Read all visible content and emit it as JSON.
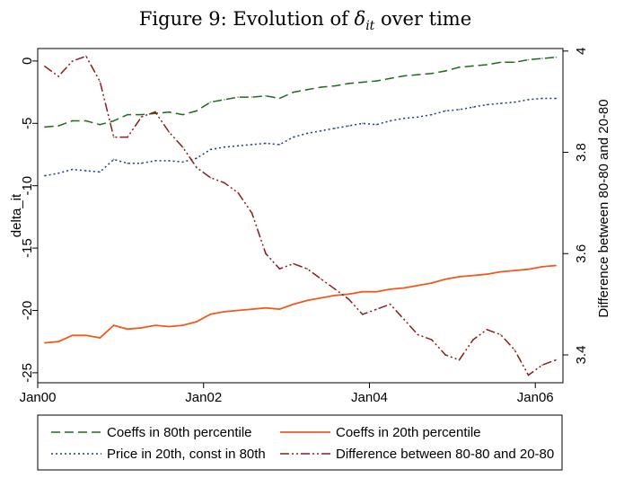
{
  "chart_data": {
    "type": "line",
    "title_prefix": "Figure 9: Evolution of ",
    "title_symbol": "δ",
    "title_subscript": "it",
    "title_suffix": " over time",
    "ylabel_left": "delta_it",
    "ylabel_right": "Difference between 80-80 and 20-80",
    "x_ticks": [
      "Jan00",
      "Jan02",
      "Jan04",
      "Jan06"
    ],
    "y_left_ticks": [
      "0",
      "-5",
      "-10",
      "-15",
      "-20",
      "-25"
    ],
    "y_right_ticks": [
      "4",
      "3.8",
      "3.6",
      "3.4"
    ],
    "xlim": [
      "2000-01",
      "2006-05"
    ],
    "ylim_left": [
      -25.8,
      1.0
    ],
    "ylim_right": [
      3.345,
      4.005
    ],
    "grid": false,
    "legend_position": "bottom",
    "x": [
      "2000-02",
      "2000-04",
      "2000-06",
      "2000-08",
      "2000-10",
      "2000-12",
      "2001-02",
      "2001-04",
      "2001-06",
      "2001-08",
      "2001-10",
      "2001-12",
      "2002-02",
      "2002-04",
      "2002-06",
      "2002-08",
      "2002-10",
      "2002-12",
      "2003-02",
      "2003-04",
      "2003-06",
      "2003-08",
      "2003-10",
      "2003-12",
      "2004-02",
      "2004-04",
      "2004-06",
      "2004-08",
      "2004-10",
      "2004-12",
      "2005-02",
      "2005-04",
      "2005-06",
      "2005-08",
      "2005-10",
      "2005-12",
      "2006-02",
      "2006-04"
    ],
    "series": [
      {
        "name": "Coeffs in 80th percentile",
        "axis": "left",
        "color": "#1e6b1e",
        "dash": "dashed",
        "values": [
          -5.3,
          -5.2,
          -4.8,
          -4.8,
          -5.1,
          -4.8,
          -4.3,
          -4.3,
          -4.2,
          -4.1,
          -4.3,
          -4.0,
          -3.3,
          -3.1,
          -2.9,
          -2.9,
          -2.8,
          -3.0,
          -2.5,
          -2.3,
          -2.1,
          -2.0,
          -1.8,
          -1.7,
          -1.6,
          -1.4,
          -1.2,
          -1.1,
          -1.0,
          -0.8,
          -0.5,
          -0.4,
          -0.3,
          -0.1,
          -0.1,
          0.1,
          0.2,
          0.3
        ]
      },
      {
        "name": "Coeffs in 20th percentile",
        "axis": "left",
        "color": "#f05a1e",
        "dash": "solid",
        "values": [
          -22.6,
          -22.5,
          -22.0,
          -22.0,
          -22.2,
          -21.2,
          -21.5,
          -21.4,
          -21.2,
          -21.3,
          -21.2,
          -20.9,
          -20.3,
          -20.1,
          -20.0,
          -19.9,
          -19.8,
          -19.9,
          -19.5,
          -19.2,
          -19.0,
          -18.8,
          -18.7,
          -18.5,
          -18.5,
          -18.3,
          -18.2,
          -18.0,
          -17.8,
          -17.5,
          -17.3,
          -17.2,
          -17.1,
          -16.9,
          -16.8,
          -16.7,
          -16.5,
          -16.4
        ]
      },
      {
        "name": "Price in 20th, const in 80th",
        "axis": "left",
        "color": "#1f3d7a",
        "dash": "dotted",
        "values": [
          -9.2,
          -9.0,
          -8.7,
          -8.8,
          -8.9,
          -7.9,
          -8.2,
          -8.2,
          -8.0,
          -8.0,
          -8.1,
          -7.8,
          -7.1,
          -6.9,
          -6.8,
          -6.7,
          -6.6,
          -6.7,
          -6.1,
          -5.8,
          -5.6,
          -5.4,
          -5.2,
          -5.0,
          -5.1,
          -4.8,
          -4.6,
          -4.5,
          -4.3,
          -4.0,
          -3.9,
          -3.7,
          -3.5,
          -3.4,
          -3.3,
          -3.1,
          -3.0,
          -3.0
        ]
      },
      {
        "name": "Difference between 80-80 and 20-80",
        "axis": "right",
        "color": "#8b1c1c",
        "dash": "dashdot",
        "values": [
          3.97,
          3.95,
          3.98,
          3.99,
          3.94,
          3.83,
          3.83,
          3.87,
          3.88,
          3.84,
          3.81,
          3.77,
          3.75,
          3.74,
          3.72,
          3.68,
          3.6,
          3.57,
          3.58,
          3.57,
          3.55,
          3.53,
          3.51,
          3.48,
          3.49,
          3.5,
          3.47,
          3.44,
          3.43,
          3.4,
          3.39,
          3.43,
          3.45,
          3.44,
          3.41,
          3.36,
          3.38,
          3.39
        ]
      }
    ]
  }
}
